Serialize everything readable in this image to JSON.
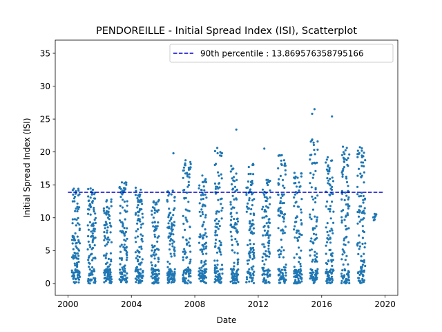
{
  "chart_data": {
    "type": "scatter",
    "title": "PENDOREILLE - Initial Spread Index (ISI), Scatterplot",
    "xlabel": "Date",
    "ylabel": "Initial Spread Index (ISI)",
    "xlim": [
      1999.2,
      2020.8
    ],
    "ylim": [
      -1.8,
      37.0
    ],
    "xticks": [
      2000,
      2004,
      2008,
      2012,
      2016,
      2020
    ],
    "yticks": [
      0,
      5,
      10,
      15,
      20,
      25,
      30,
      35
    ],
    "point_color": "#1f77b4",
    "grid": false,
    "legend": {
      "placement": "top-right",
      "entries": [
        {
          "label": "90th percentile : 13.869576358795166",
          "style": "dashed",
          "color": "#0000cc"
        }
      ]
    },
    "reference_line": {
      "y": 13.869576358795166,
      "x_range": [
        2000.0,
        2019.9
      ],
      "color": "#0000cc"
    },
    "seasons": [
      {
        "year": 2000,
        "x_range": [
          2000.25,
          2000.75
        ],
        "max": 14.6,
        "outliers": []
      },
      {
        "year": 2001,
        "x_range": [
          2001.25,
          2001.75
        ],
        "max": 14.5,
        "outliers": []
      },
      {
        "year": 2002,
        "x_range": [
          2002.25,
          2002.75
        ],
        "max": 12.8,
        "outliers": []
      },
      {
        "year": 2003,
        "x_range": [
          2003.25,
          2003.75
        ],
        "max": 15.4,
        "outliers": []
      },
      {
        "year": 2004,
        "x_range": [
          2004.25,
          2004.75
        ],
        "max": 14.7,
        "outliers": []
      },
      {
        "year": 2005,
        "x_range": [
          2005.25,
          2005.75
        ],
        "max": 12.7,
        "outliers": []
      },
      {
        "year": 2006,
        "x_range": [
          2006.25,
          2006.75
        ],
        "max": 14.2,
        "outliers": [
          [
            2006.65,
            19.8
          ]
        ]
      },
      {
        "year": 2007,
        "x_range": [
          2007.25,
          2007.75
        ],
        "max": 18.9,
        "outliers": []
      },
      {
        "year": 2008,
        "x_range": [
          2008.25,
          2008.75
        ],
        "max": 16.7,
        "outliers": []
      },
      {
        "year": 2009,
        "x_range": [
          2009.25,
          2009.75
        ],
        "max": 20.9,
        "outliers": []
      },
      {
        "year": 2010,
        "x_range": [
          2010.25,
          2010.75
        ],
        "max": 18.0,
        "outliers": [
          [
            2010.62,
            23.4
          ]
        ]
      },
      {
        "year": 2011,
        "x_range": [
          2011.25,
          2011.75
        ],
        "max": 18.4,
        "outliers": []
      },
      {
        "year": 2012,
        "x_range": [
          2012.25,
          2012.75
        ],
        "max": 16.0,
        "outliers": [
          [
            2012.38,
            20.5
          ]
        ]
      },
      {
        "year": 2013,
        "x_range": [
          2013.25,
          2013.75
        ],
        "max": 19.8,
        "outliers": []
      },
      {
        "year": 2014,
        "x_range": [
          2014.25,
          2014.75
        ],
        "max": 17.1,
        "outliers": []
      },
      {
        "year": 2015,
        "x_range": [
          2015.25,
          2015.75
        ],
        "max": 22.0,
        "outliers": [
          [
            2015.4,
            25.8
          ],
          [
            2015.55,
            26.5
          ]
        ]
      },
      {
        "year": 2016,
        "x_range": [
          2016.25,
          2016.75
        ],
        "max": 19.2,
        "outliers": [
          [
            2016.65,
            25.4
          ]
        ]
      },
      {
        "year": 2017,
        "x_range": [
          2017.25,
          2017.75
        ],
        "max": 21.2,
        "outliers": []
      },
      {
        "year": 2018,
        "x_range": [
          2018.25,
          2018.75
        ],
        "max": 21.1,
        "outliers": []
      },
      {
        "year": 2019,
        "x_range": [
          2019.25,
          2019.45
        ],
        "max": 11.0,
        "min": 9.2,
        "outliers": []
      }
    ]
  }
}
